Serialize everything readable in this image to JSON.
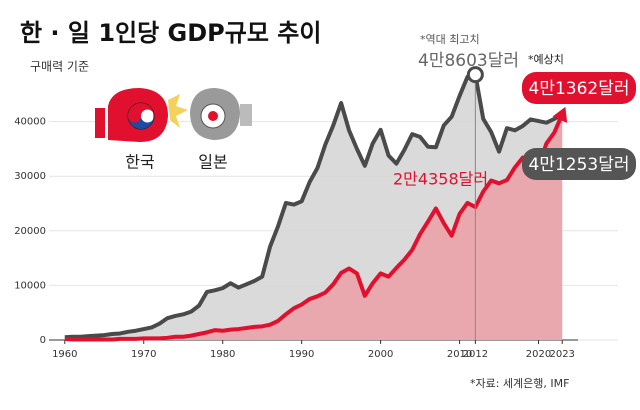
{
  "chart_data": {
    "type": "area",
    "title": "한 · 일 1인당 GDP규모 추이",
    "subtitle": "구매력 기준",
    "annotations": {
      "peak_note": "*역대 최고치",
      "peak_label": "4만8603달러",
      "forecast_note": "*예상치",
      "korea_end_label": "4만1362달러",
      "japan_end_label": "4만1253달러",
      "korea_2012_label": "2만4358달러",
      "source": "*자료: 세계은행, IMF"
    },
    "x": [
      1960,
      1961,
      1962,
      1963,
      1964,
      1965,
      1966,
      1967,
      1968,
      1969,
      1970,
      1971,
      1972,
      1973,
      1974,
      1975,
      1976,
      1977,
      1978,
      1979,
      1980,
      1981,
      1982,
      1983,
      1984,
      1985,
      1986,
      1987,
      1988,
      1989,
      1990,
      1991,
      1992,
      1993,
      1994,
      1995,
      1996,
      1997,
      1998,
      1999,
      2000,
      2001,
      2002,
      2003,
      2004,
      2005,
      2006,
      2007,
      2008,
      2009,
      2010,
      2011,
      2012,
      2013,
      2014,
      2015,
      2016,
      2017,
      2018,
      2019,
      2020,
      2021,
      2022,
      2023
    ],
    "series": [
      {
        "name": "일본",
        "color": "#4a4a4a",
        "fill": "#d6d6d6",
        "values": [
          500,
          600,
          600,
          700,
          800,
          900,
          1100,
          1200,
          1500,
          1700,
          2000,
          2300,
          3000,
          4000,
          4400,
          4700,
          5200,
          6300,
          8800,
          9100,
          9500,
          10400,
          9600,
          10200,
          10800,
          11600,
          17100,
          20800,
          25100,
          24800,
          25400,
          28900,
          31500,
          35800,
          39300,
          43400,
          38400,
          35000,
          31900,
          36000,
          38500,
          33800,
          32300,
          34800,
          37700,
          37200,
          35400,
          35300,
          39300,
          40900,
          44700,
          48200,
          48603,
          40500,
          38100,
          34500,
          38800,
          38400,
          39200,
          40400,
          40100,
          39800,
          40500,
          41253
        ]
      },
      {
        "name": "한국",
        "color": "#e0102e",
        "fill": "#eaa2a8",
        "values": [
          200,
          100,
          100,
          100,
          100,
          100,
          100,
          200,
          200,
          200,
          300,
          300,
          300,
          400,
          600,
          600,
          800,
          1100,
          1400,
          1800,
          1700,
          1900,
          2000,
          2200,
          2400,
          2500,
          2800,
          3500,
          4700,
          5800,
          6500,
          7500,
          8000,
          8700,
          10200,
          12300,
          13100,
          12200,
          8100,
          10400,
          12200,
          11600,
          13200,
          14700,
          16500,
          19400,
          21700,
          24100,
          21400,
          19100,
          23100,
          25100,
          24358,
          27200,
          29200,
          28700,
          29300,
          31600,
          33400,
          31900,
          31700,
          36000,
          38000,
          41362
        ]
      }
    ],
    "xlim": [
      1958,
      2025
    ],
    "xticks": [
      1960,
      1970,
      1980,
      1990,
      2000,
      2010,
      2012,
      2020,
      2023
    ],
    "ylim": [
      0,
      50000
    ],
    "yticks": [
      0,
      10000,
      20000,
      30000,
      40000
    ],
    "grid": true,
    "peak_index": 52
  }
}
